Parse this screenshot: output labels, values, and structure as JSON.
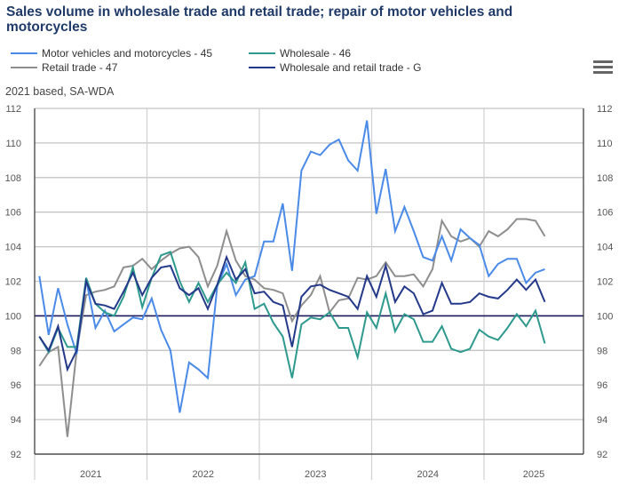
{
  "title": "Sales volume in wholesale trade and retail trade; repair of motor vehicles and motorcycles",
  "subtitle": "2021 based, SA-WDA",
  "menu_icon": "hamburger-menu-icon",
  "legend": [
    {
      "label": "Motor vehicles and motorcycles - 45",
      "color": "#4a8ae8"
    },
    {
      "label": "Wholesale - 46",
      "color": "#2e9a8e"
    },
    {
      "label": "Retail trade - 47",
      "color": "#8e8e8e"
    },
    {
      "label": "Wholesale and retail trade - G",
      "color": "#24398a"
    }
  ],
  "chart_data": {
    "type": "line",
    "title": "Sales volume in wholesale trade and retail trade; repair of motor vehicles and motorcycles",
    "subtitle": "2021 based, SA-WDA",
    "xlabel": "",
    "ylabel": "",
    "x_start": "2021-01",
    "x_frequency": "monthly",
    "x_tick_labels": [
      "2021",
      "2022",
      "2023",
      "2024",
      "2025"
    ],
    "ylim": [
      92,
      112
    ],
    "y_ticks": [
      92,
      94,
      96,
      98,
      100,
      102,
      104,
      106,
      108,
      110,
      112
    ],
    "reference_line": 100,
    "grid": true,
    "legend_position": "top-left",
    "series": [
      {
        "name": "Motor vehicles and motorcycles - 45",
        "color": "#4a8ae8",
        "values": [
          102.3,
          98.9,
          101.6,
          99.5,
          97.8,
          102.1,
          99.3,
          100.3,
          99.1,
          99.5,
          99.9,
          99.8,
          101.0,
          99.2,
          98.0,
          94.4,
          97.3,
          96.9,
          96.4,
          101.7,
          103.0,
          101.2,
          102.1,
          102.3,
          104.3,
          104.3,
          106.5,
          102.6,
          108.4,
          109.5,
          109.3,
          109.9,
          110.2,
          109.0,
          108.4,
          111.3,
          105.9,
          108.5,
          104.9,
          106.3,
          104.9,
          103.4,
          103.2,
          104.6,
          103.2,
          105.0,
          104.5,
          104.1,
          102.3,
          103.0,
          103.3,
          103.3,
          101.9,
          102.5,
          102.7
        ]
      },
      {
        "name": "Wholesale - 46",
        "color": "#2e9a8e",
        "values": [
          98.8,
          97.9,
          99.3,
          98.2,
          98.2,
          102.2,
          100.7,
          100.2,
          100.0,
          101.1,
          102.8,
          100.5,
          102.2,
          103.5,
          103.7,
          102.0,
          100.8,
          101.9,
          100.8,
          101.8,
          102.5,
          101.9,
          103.1,
          100.4,
          100.7,
          99.6,
          98.8,
          96.4,
          99.5,
          99.9,
          99.8,
          100.2,
          99.3,
          99.3,
          97.6,
          100.2,
          99.3,
          101.3,
          99.1,
          100.1,
          99.8,
          98.5,
          98.5,
          99.4,
          98.1,
          97.9,
          98.1,
          99.2,
          98.8,
          98.6,
          99.3,
          100.1,
          99.4,
          100.3,
          98.4
        ]
      },
      {
        "name": "Retail trade - 47",
        "color": "#8e8e8e",
        "values": [
          97.1,
          97.9,
          98.2,
          93.0,
          98.0,
          101.2,
          101.4,
          101.5,
          101.7,
          102.8,
          102.9,
          103.3,
          102.7,
          103.2,
          103.6,
          103.9,
          104.0,
          103.4,
          101.7,
          102.9,
          104.9,
          103.2,
          102.3,
          102.1,
          101.6,
          101.5,
          101.3,
          99.7,
          100.6,
          101.2,
          102.3,
          100.2,
          100.9,
          101.0,
          102.2,
          102.1,
          102.3,
          103.1,
          102.3,
          102.3,
          102.4,
          101.7,
          102.7,
          105.5,
          104.6,
          104.3,
          104.5,
          104.0,
          104.9,
          104.6,
          105.0,
          105.6,
          105.6,
          105.5,
          104.6
        ]
      },
      {
        "name": "Wholesale and retail trade - G",
        "color": "#24398a",
        "values": [
          98.8,
          98.0,
          99.4,
          96.9,
          98.0,
          102.0,
          100.7,
          100.6,
          100.4,
          101.4,
          102.5,
          101.2,
          102.2,
          102.8,
          102.9,
          101.6,
          101.2,
          101.6,
          100.4,
          101.8,
          103.4,
          102.1,
          102.7,
          101.3,
          101.4,
          100.8,
          100.6,
          98.2,
          101.1,
          101.7,
          101.8,
          101.5,
          101.3,
          101.1,
          100.4,
          102.3,
          101.1,
          102.9,
          100.8,
          101.7,
          101.3,
          100.1,
          100.3,
          101.9,
          100.7,
          100.7,
          100.8,
          101.3,
          101.1,
          101.0,
          101.5,
          102.1,
          101.5,
          102.1,
          100.8
        ]
      }
    ]
  }
}
